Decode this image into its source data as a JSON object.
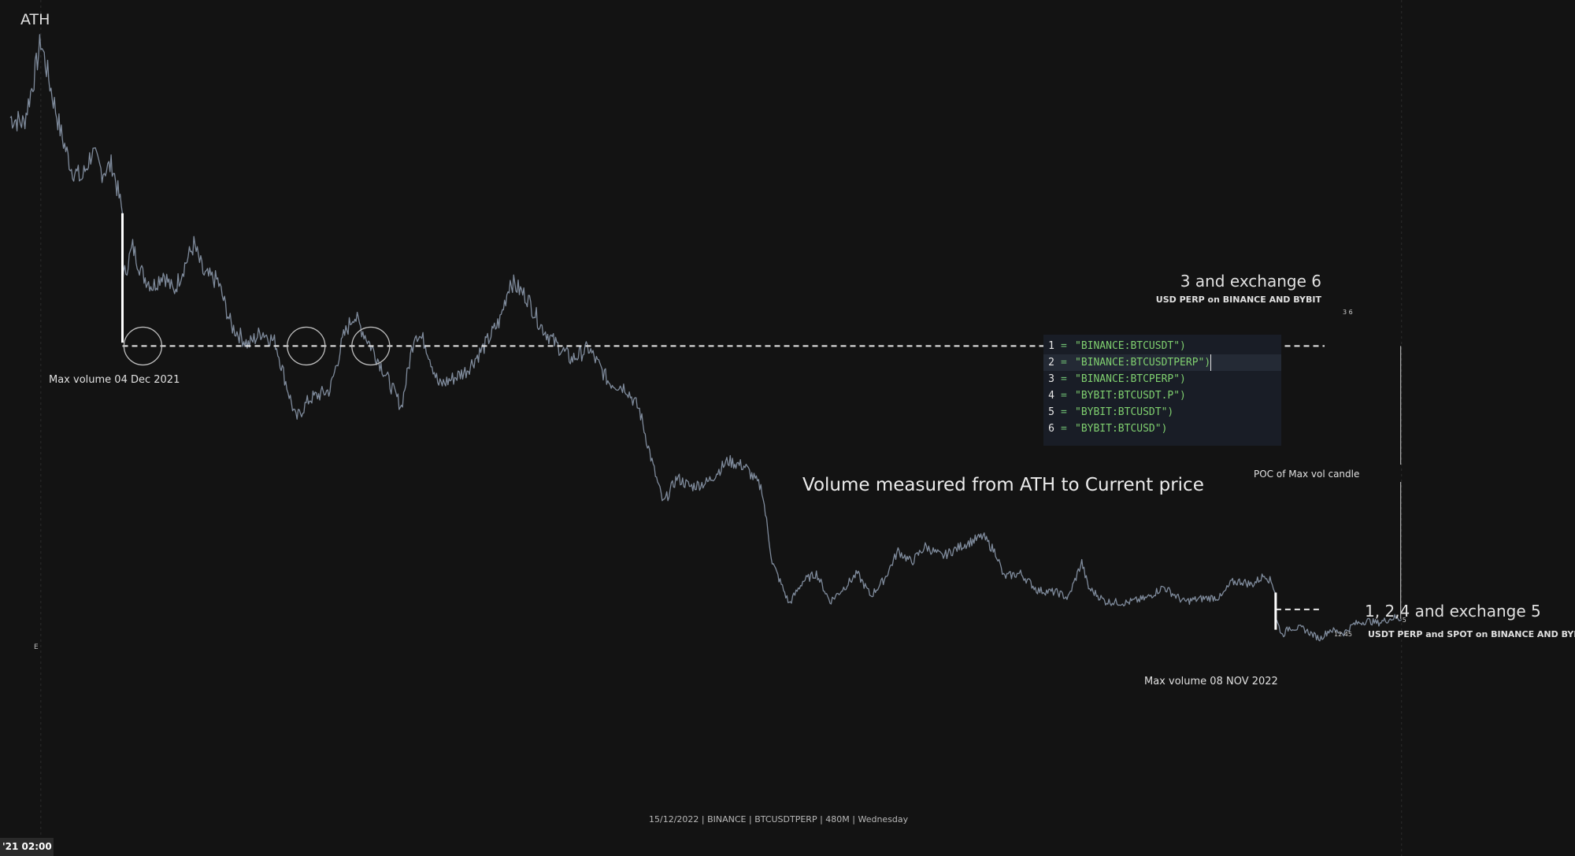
{
  "chart": {
    "background": "#131313",
    "line_color": "#7f8b9c",
    "ath_label": "ATH",
    "max_volume_1": "Max volume 04 Dec 2021",
    "max_volume_2": "Max volume 08 NOV 2022",
    "level_upper": {
      "title": "3 and exchange 6",
      "subtitle": "USD PERP on BINANCE AND BYBIT",
      "tag": "3   6"
    },
    "level_lower": {
      "title": "1, 2,4 and exchange 5",
      "subtitle": "USDT PERP and SPOT on BINANCE AND BYBIT",
      "tag": "12  45",
      "marker": "5"
    },
    "poc_label": "POC of Max vol candle",
    "measure_note": "Volume measured from ATH to Current price",
    "status_line": "15/12/2022 | BINANCE | BTCUSDTPERP | 480M | Wednesday",
    "e_marker": "E",
    "time_label": "'21   02:00"
  },
  "code_panel": {
    "rows": [
      {
        "n": "1",
        "eq": "=",
        "text": "\"BINANCE:BTCUSDT\")"
      },
      {
        "n": "2",
        "eq": "=",
        "text": "\"BINANCE:BTCUSDTPERP\")"
      },
      {
        "n": "3",
        "eq": "=",
        "text": "\"BINANCE:BTCPERP\")"
      },
      {
        "n": "4",
        "eq": "=",
        "text": "\"BYBIT:BTCUSDT.P\")"
      },
      {
        "n": "5",
        "eq": "=",
        "text": "\"BYBIT:BTCUSDT\")"
      },
      {
        "n": "6",
        "eq": "=",
        "text": "\"BYBIT:BTCUSD\")"
      }
    ],
    "highlight_row": "2"
  },
  "chart_data": {
    "type": "line",
    "title": "",
    "symbol": "BTCUSDTPERP",
    "exchange": "BINANCE",
    "interval": "480M",
    "x_start": "2021-11-10",
    "x_end": "2022-12-15",
    "x_reference_line": "2021-11-10",
    "current_marker": "2022-12-15",
    "series": [
      {
        "values": [
          [
            "2021-11-01",
            62000
          ],
          [
            "2021-11-05",
            61500
          ],
          [
            "2021-11-08",
            65500
          ],
          [
            "2021-11-10",
            68800
          ],
          [
            "2021-11-13",
            64500
          ],
          [
            "2021-11-16",
            60500
          ],
          [
            "2021-11-19",
            57500
          ],
          [
            "2021-11-22",
            56500
          ],
          [
            "2021-11-25",
            58900
          ],
          [
            "2021-11-28",
            57200
          ],
          [
            "2021-12-01",
            57800
          ],
          [
            "2021-12-04",
            53500
          ],
          [
            "2021-12-04",
            47500
          ],
          [
            "2021-12-07",
            50500
          ],
          [
            "2021-12-10",
            48000
          ],
          [
            "2021-12-13",
            47000
          ],
          [
            "2021-12-16",
            48200
          ],
          [
            "2021-12-19",
            46500
          ],
          [
            "2021-12-22",
            48700
          ],
          [
            "2021-12-25",
            50700
          ],
          [
            "2021-12-28",
            48000
          ],
          [
            "2022-01-01",
            47500
          ],
          [
            "2022-01-05",
            43500
          ],
          [
            "2022-01-10",
            41800
          ],
          [
            "2022-01-14",
            43000
          ],
          [
            "2022-01-18",
            42000
          ],
          [
            "2022-01-21",
            38500
          ],
          [
            "2022-01-24",
            35200
          ],
          [
            "2022-01-28",
            37000
          ],
          [
            "2022-02-03",
            37800
          ],
          [
            "2022-02-07",
            42500
          ],
          [
            "2022-02-10",
            44500
          ],
          [
            "2022-02-14",
            42300
          ],
          [
            "2022-02-18",
            40000
          ],
          [
            "2022-02-22",
            37500
          ],
          [
            "2022-02-24",
            36300
          ],
          [
            "2022-02-28",
            43000
          ],
          [
            "2022-03-03",
            42000
          ],
          [
            "2022-03-07",
            38200
          ],
          [
            "2022-03-11",
            38800
          ],
          [
            "2022-03-15",
            39500
          ],
          [
            "2022-03-20",
            41500
          ],
          [
            "2022-03-25",
            44000
          ],
          [
            "2022-03-28",
            47500
          ],
          [
            "2022-04-02",
            46000
          ],
          [
            "2022-04-06",
            43500
          ],
          [
            "2022-04-10",
            42000
          ],
          [
            "2022-04-15",
            40500
          ],
          [
            "2022-04-20",
            41500
          ],
          [
            "2022-04-26",
            38500
          ],
          [
            "2022-05-01",
            38000
          ],
          [
            "2022-05-05",
            36000
          ],
          [
            "2022-05-09",
            31000
          ],
          [
            "2022-05-12",
            27700
          ],
          [
            "2022-05-16",
            30000
          ],
          [
            "2022-05-20",
            29200
          ],
          [
            "2022-05-25",
            29600
          ],
          [
            "2022-05-31",
            31500
          ],
          [
            "2022-06-05",
            31000
          ],
          [
            "2022-06-10",
            29000
          ],
          [
            "2022-06-13",
            22500
          ],
          [
            "2022-06-18",
            18800
          ],
          [
            "2022-06-22",
            20800
          ],
          [
            "2022-06-26",
            21500
          ],
          [
            "2022-06-30",
            19000
          ],
          [
            "2022-07-04",
            20200
          ],
          [
            "2022-07-08",
            21500
          ],
          [
            "2022-07-12",
            19500
          ],
          [
            "2022-07-16",
            21000
          ],
          [
            "2022-07-20",
            23500
          ],
          [
            "2022-07-24",
            22500
          ],
          [
            "2022-07-28",
            23900
          ],
          [
            "2022-08-02",
            23000
          ],
          [
            "2022-08-08",
            24000
          ],
          [
            "2022-08-14",
            24800
          ],
          [
            "2022-08-18",
            23200
          ],
          [
            "2022-08-20",
            21200
          ],
          [
            "2022-08-25",
            21500
          ],
          [
            "2022-08-30",
            20000
          ],
          [
            "2022-09-05",
            19800
          ],
          [
            "2022-09-08",
            19300
          ],
          [
            "2022-09-12",
            22500
          ],
          [
            "2022-09-14",
            20200
          ],
          [
            "2022-09-19",
            19000
          ],
          [
            "2022-09-25",
            18900
          ],
          [
            "2022-10-01",
            19300
          ],
          [
            "2022-10-06",
            20300
          ],
          [
            "2022-10-12",
            19000
          ],
          [
            "2022-10-18",
            19300
          ],
          [
            "2022-10-23",
            19400
          ],
          [
            "2022-10-26",
            20700
          ],
          [
            "2022-10-29",
            20800
          ],
          [
            "2022-11-01",
            20500
          ],
          [
            "2022-11-05",
            21400
          ],
          [
            "2022-11-07",
            20600
          ],
          [
            "2022-11-08",
            19800
          ],
          [
            "2022-11-08",
            17500
          ],
          [
            "2022-11-10",
            16000
          ],
          [
            "2022-11-12",
            16700
          ],
          [
            "2022-11-16",
            16600
          ],
          [
            "2022-11-21",
            15700
          ],
          [
            "2022-11-24",
            16500
          ],
          [
            "2022-11-28",
            16200
          ],
          [
            "2022-12-01",
            17000
          ],
          [
            "2022-12-05",
            17300
          ],
          [
            "2022-12-08",
            17100
          ],
          [
            "2022-12-13",
            17600
          ],
          [
            "2022-12-15",
            17400
          ]
        ]
      }
    ],
    "levels": [
      {
        "price": 41700,
        "label": "3 and exchange 6",
        "from": "2021-12-04"
      },
      {
        "price": 18300,
        "label": "1, 2,4 and exchange 5",
        "from": "2022-11-08"
      }
    ],
    "max_volume_candles": [
      {
        "date": "2021-12-04",
        "high": 53500,
        "low": 42000,
        "label": "Max volume 04 Dec 2021"
      },
      {
        "date": "2022-11-08",
        "high": 19800,
        "low": 16500,
        "label": "Max volume 08 NOV 2022"
      }
    ],
    "circles": [
      {
        "date": "2021-12-10",
        "price": 41700
      },
      {
        "date": "2022-01-27",
        "price": 41700
      },
      {
        "date": "2022-02-15",
        "price": 41700
      }
    ],
    "poc_line_date": "2022-12-15",
    "poc_label": "POC of Max vol candle",
    "xlim": [
      "2021-10-29",
      "2023-02-04"
    ],
    "ylim": [
      12000,
      69500
    ],
    "grid": false
  }
}
